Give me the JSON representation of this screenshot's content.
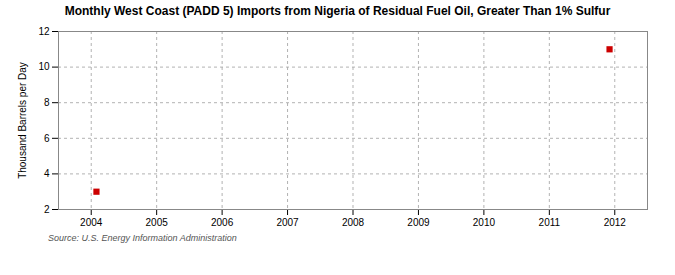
{
  "chart_data": {
    "type": "scatter",
    "title": "Monthly West Coast (PADD 5) Imports from Nigeria of Residual Fuel Oil, Greater Than 1% Sulfur",
    "ylabel": "Thousand Barrels per Day",
    "source": "Source: U.S. Energy Information Administration",
    "x": [
      2004.08,
      2011.92
    ],
    "values": [
      3.0,
      11.0
    ],
    "color": "#cc0000",
    "marker": "square",
    "xlim": [
      2003.5,
      2012.5
    ],
    "ylim": [
      2,
      12
    ],
    "xticks": [
      2004,
      2005,
      2006,
      2007,
      2008,
      2009,
      2010,
      2011,
      2012
    ],
    "yticks": [
      2,
      4,
      6,
      8,
      10,
      12
    ],
    "grid": true
  }
}
